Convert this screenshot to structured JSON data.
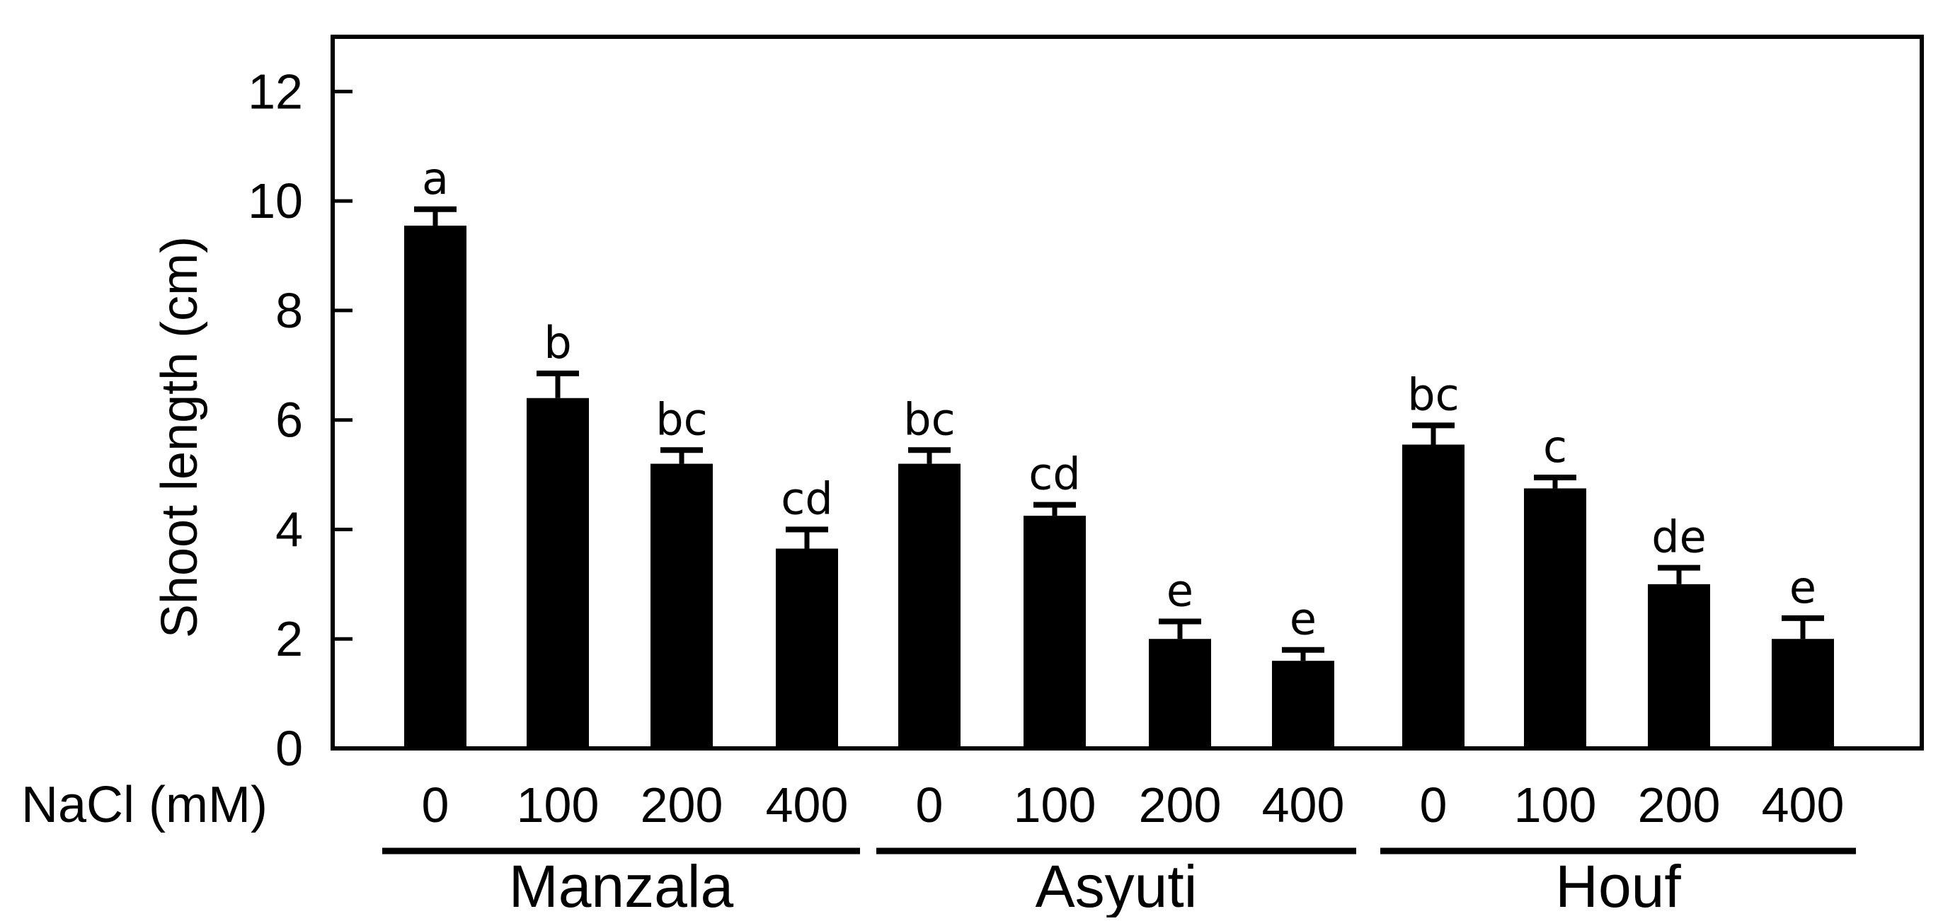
{
  "chart_data": {
    "type": "bar",
    "title": "",
    "ylabel": "Shoot length (cm)",
    "xlabel": "NaCl (mM)",
    "ylim": [
      0,
      13
    ],
    "yticks": [
      "0",
      "2",
      "4",
      "6",
      "8",
      "10",
      "12"
    ],
    "grid": false,
    "bar_color": "#000000",
    "categories": [
      "0",
      "100",
      "200",
      "400",
      "0",
      "100",
      "200",
      "400",
      "0",
      "100",
      "200",
      "400"
    ],
    "groups": [
      {
        "name": "Manzala",
        "start": 0,
        "end": 3
      },
      {
        "name": "Asyuti",
        "start": 4,
        "end": 7
      },
      {
        "name": "Houf",
        "start": 8,
        "end": 11
      }
    ],
    "values": [
      9.55,
      6.4,
      5.2,
      3.65,
      5.2,
      4.25,
      2.0,
      1.6,
      5.55,
      4.75,
      3.0,
      2.0
    ],
    "errors": [
      0.3,
      0.45,
      0.25,
      0.35,
      0.25,
      0.2,
      0.32,
      0.2,
      0.35,
      0.2,
      0.3,
      0.38
    ],
    "significance": [
      "a",
      "b",
      "bc",
      "cd",
      "bc",
      "cd",
      "e",
      "e",
      "bc",
      "c",
      "de",
      "e"
    ]
  }
}
